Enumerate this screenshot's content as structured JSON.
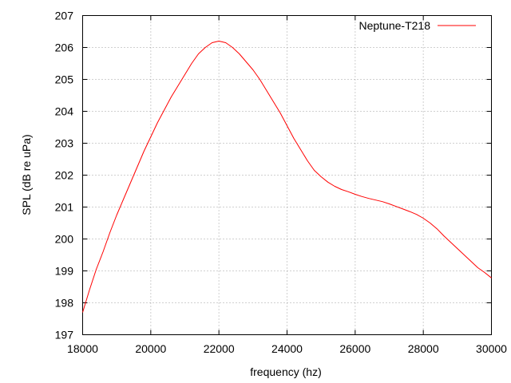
{
  "chart_data": {
    "type": "line",
    "xlabel": "frequency (hz)",
    "ylabel": "SPL (dB re uPa)",
    "xlim": [
      18000,
      30000
    ],
    "ylim": [
      197,
      207
    ],
    "xticks": [
      18000,
      20000,
      22000,
      24000,
      26000,
      28000,
      30000
    ],
    "yticks": [
      197,
      198,
      199,
      200,
      201,
      202,
      203,
      204,
      205,
      206,
      207
    ],
    "grid": true,
    "legend_position": "top-right",
    "series": [
      {
        "name": "Neptune-T218",
        "color": "#ff0000",
        "x": [
          18000,
          18200,
          18400,
          18600,
          18800,
          19000,
          19200,
          19400,
          19600,
          19800,
          20000,
          20200,
          20400,
          20600,
          20800,
          21000,
          21200,
          21400,
          21600,
          21800,
          22000,
          22200,
          22400,
          22600,
          22800,
          23000,
          23200,
          23400,
          23600,
          23800,
          24000,
          24200,
          24400,
          24600,
          24800,
          25000,
          25200,
          25400,
          25600,
          25800,
          26000,
          26200,
          26400,
          26600,
          26800,
          27000,
          27200,
          27400,
          27600,
          27800,
          28000,
          28200,
          28400,
          28600,
          28800,
          29000,
          29200,
          29400,
          29600,
          29800,
          30000
        ],
        "y": [
          197.7,
          198.4,
          199.05,
          199.6,
          200.2,
          200.75,
          201.25,
          201.75,
          202.25,
          202.75,
          203.2,
          203.65,
          204.05,
          204.45,
          204.8,
          205.15,
          205.5,
          205.8,
          206.0,
          206.15,
          206.2,
          206.15,
          206.0,
          205.8,
          205.55,
          205.3,
          205.0,
          204.65,
          204.3,
          203.95,
          203.55,
          203.15,
          202.8,
          202.45,
          202.15,
          201.95,
          201.78,
          201.65,
          201.55,
          201.48,
          201.4,
          201.33,
          201.27,
          201.22,
          201.17,
          201.1,
          201.02,
          200.94,
          200.86,
          200.77,
          200.65,
          200.5,
          200.32,
          200.1,
          199.9,
          199.7,
          199.5,
          199.3,
          199.1,
          198.95,
          198.78
        ]
      }
    ]
  }
}
